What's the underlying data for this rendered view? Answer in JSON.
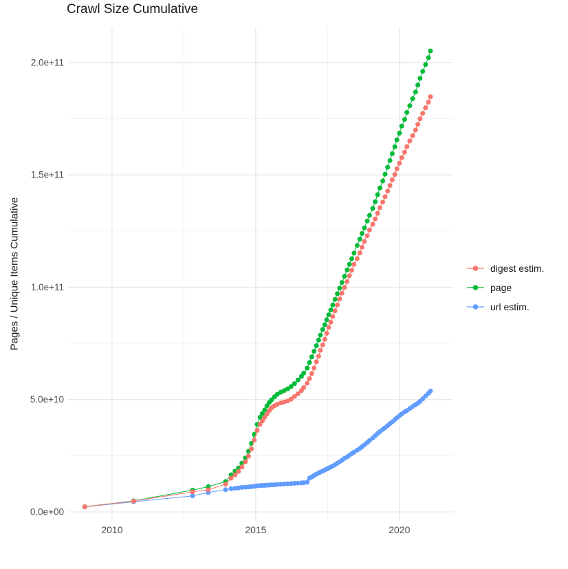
{
  "chart_data": {
    "type": "line",
    "title": "Crawl Size Cumulative",
    "xlabel": "",
    "ylabel": "Pages / Unique Items Cumulative",
    "value_unit": "billions (1e9) of pages / unique items",
    "grid": true,
    "legend": {
      "position": "right",
      "entries": [
        "digest estim.",
        "page",
        "url estim."
      ]
    },
    "x_axis": {
      "lim": [
        2008.47,
        2021.87
      ],
      "ticks": [
        2010,
        2015,
        2020
      ],
      "tick_labels": [
        "2010",
        "2015",
        "2020"
      ],
      "minor_ticks": [
        2012.5,
        2017.5
      ]
    },
    "y_axis": {
      "lim": [
        -3.98,
        215.6
      ],
      "ticks": [
        0,
        50,
        100,
        150,
        200
      ],
      "tick_labels": [
        "0.0e+00",
        "5.0e+10",
        "1.0e+11",
        "1.5e+11",
        "2.0e+11"
      ],
      "minor_ticks": [
        25,
        75,
        125,
        175
      ]
    },
    "x": [
      2009.05,
      2010.75,
      2012.8,
      2013.35,
      2013.95,
      2014.14,
      2014.28,
      2014.4,
      2014.52,
      2014.64,
      2014.75,
      2014.85,
      2014.95,
      2015.05,
      2015.15,
      2015.23,
      2015.31,
      2015.39,
      2015.47,
      2015.55,
      2015.65,
      2015.75,
      2015.87,
      2015.99,
      2016.11,
      2016.23,
      2016.35,
      2016.47,
      2016.59,
      2016.67,
      2016.79,
      2016.87,
      2016.95,
      2017.03,
      2017.11,
      2017.19,
      2017.25,
      2017.33,
      2017.4,
      2017.47,
      2017.54,
      2017.61,
      2017.68,
      2017.76,
      2017.84,
      2017.92,
      2018.0,
      2018.09,
      2018.18,
      2018.26,
      2018.34,
      2018.42,
      2018.53,
      2018.62,
      2018.7,
      2018.78,
      2018.88,
      2018.96,
      2019.07,
      2019.16,
      2019.24,
      2019.32,
      2019.42,
      2019.5,
      2019.59,
      2019.67,
      2019.75,
      2019.84,
      2019.91,
      2020.0,
      2020.08,
      2020.18,
      2020.26,
      2020.36,
      2020.46,
      2020.56,
      2020.64,
      2020.72,
      2020.81,
      2020.91,
      2021.01,
      2021.08
    ],
    "series": [
      {
        "name": "digest estim.",
        "color": "#F8766D",
        "values": [
          2.3,
          4.8,
          8.9,
          9.9,
          12.3,
          15.0,
          16.5,
          18.0,
          20.0,
          22.3,
          24.8,
          28.0,
          32.0,
          36.3,
          39.0,
          40.5,
          42.1,
          43.6,
          45.1,
          46.3,
          47.2,
          47.9,
          48.5,
          48.9,
          49.4,
          50.2,
          51.4,
          52.6,
          54.0,
          55.3,
          57.3,
          59.3,
          61.6,
          64.0,
          66.8,
          69.3,
          71.9,
          74.4,
          76.8,
          79.5,
          82.1,
          84.4,
          87.0,
          89.5,
          92.1,
          94.8,
          97.4,
          99.9,
          102.5,
          105.1,
          107.6,
          110.2,
          112.7,
          115.3,
          117.8,
          120.4,
          122.9,
          125.5,
          128.0,
          130.4,
          132.9,
          135.4,
          137.9,
          140.3,
          142.8,
          145.3,
          147.8,
          150.2,
          152.7,
          155.2,
          157.7,
          160.1,
          162.6,
          165.1,
          167.5,
          170.0,
          172.5,
          175.0,
          177.4,
          179.9,
          182.4,
          184.8
        ]
      },
      {
        "name": "page",
        "color": "#00BA38",
        "values": [
          2.3,
          4.9,
          9.7,
          11.2,
          13.5,
          16.5,
          18.1,
          19.6,
          21.7,
          24.0,
          27.0,
          30.5,
          34.5,
          39.0,
          42.1,
          43.8,
          45.4,
          47.2,
          48.7,
          49.9,
          51.2,
          52.3,
          53.3,
          54.0,
          54.8,
          55.8,
          57.1,
          58.7,
          60.3,
          61.8,
          64.0,
          66.5,
          69.0,
          71.5,
          74.0,
          76.5,
          78.7,
          81.2,
          83.3,
          85.5,
          87.7,
          89.9,
          92.1,
          94.6,
          97.1,
          99.6,
          102.1,
          104.9,
          107.7,
          110.2,
          112.7,
          115.2,
          118.6,
          121.4,
          123.9,
          126.4,
          129.5,
          132.0,
          135.1,
          138.1,
          141.2,
          144.2,
          147.3,
          150.3,
          153.4,
          156.4,
          159.5,
          162.5,
          165.6,
          168.6,
          171.7,
          174.7,
          177.8,
          180.8,
          183.9,
          186.9,
          190.0,
          193.0,
          196.1,
          199.1,
          202.2,
          205.2
        ]
      },
      {
        "name": "url estim.",
        "color": "#619CFF",
        "values": [
          2.2,
          4.5,
          7.1,
          8.6,
          9.9,
          10.3,
          10.5,
          10.7,
          10.9,
          11.0,
          11.1,
          11.2,
          11.4,
          11.6,
          11.7,
          11.75,
          11.8,
          11.9,
          11.95,
          12.0,
          12.1,
          12.2,
          12.3,
          12.4,
          12.5,
          12.6,
          12.7,
          12.8,
          12.9,
          13.0,
          13.2,
          15.0,
          15.6,
          16.2,
          16.8,
          17.3,
          17.7,
          18.2,
          18.6,
          19.1,
          19.5,
          20.0,
          20.4,
          21.0,
          21.7,
          22.3,
          23.0,
          23.8,
          24.5,
          25.2,
          25.9,
          26.6,
          27.5,
          28.3,
          29.0,
          29.8,
          30.8,
          31.8,
          32.9,
          33.9,
          34.9,
          35.7,
          36.7,
          37.5,
          38.4,
          39.3,
          40.1,
          41.1,
          41.9,
          42.8,
          43.6,
          44.5,
          45.1,
          46.0,
          46.9,
          47.7,
          48.4,
          49.2,
          50.3,
          51.6,
          52.8,
          53.8
        ]
      }
    ]
  },
  "colors": {
    "background": "#FFFFFF",
    "grid_major": "#E4E4E4",
    "grid_minor": "#F1F1F1",
    "axis_text": "#4D4D4D",
    "title_text": "#1A1A1A"
  }
}
